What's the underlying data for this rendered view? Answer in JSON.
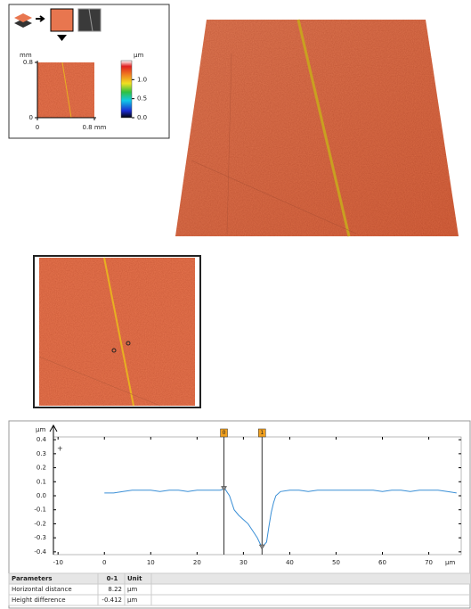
{
  "inset": {
    "axis_unit": "mm",
    "xlim": [
      0,
      0.8
    ],
    "xticks": [
      0,
      {
        "value": 0.8,
        "label": "0.8 mm"
      }
    ],
    "ylim": [
      0,
      0.8
    ],
    "yticks": [
      0,
      0.8
    ],
    "colorbar_unit": "µm",
    "colorbar_lim": [
      0,
      1.5
    ],
    "colorbar_ticks": [
      {
        "value": 0,
        "label": "0.0"
      },
      0.5,
      {
        "value": 1,
        "label": "1.0"
      }
    ]
  },
  "chart_data": {
    "type": "line",
    "x_unit": "µm",
    "y_unit": "µm",
    "x": [
      0,
      2,
      4,
      6,
      8,
      10,
      12,
      14,
      16,
      18,
      20,
      22,
      24,
      25,
      26,
      27,
      28,
      29,
      30,
      31,
      32,
      33,
      34,
      35,
      35.5,
      36,
      36.5,
      37,
      38,
      40,
      42,
      44,
      46,
      48,
      50,
      52,
      54,
      56,
      58,
      60,
      62,
      64,
      66,
      68,
      70,
      72,
      74,
      76
    ],
    "series": [
      {
        "color": "#3a8fd6",
        "values": [
          0.02,
          0.02,
          0.03,
          0.04,
          0.04,
          0.04,
          0.03,
          0.04,
          0.04,
          0.03,
          0.04,
          0.04,
          0.04,
          0.04,
          0.05,
          0.0,
          -0.1,
          -0.14,
          -0.17,
          -0.2,
          -0.25,
          -0.3,
          -0.37,
          -0.33,
          -0.22,
          -0.12,
          -0.05,
          0.0,
          0.03,
          0.04,
          0.04,
          0.03,
          0.04,
          0.04,
          0.04,
          0.04,
          0.04,
          0.04,
          0.04,
          0.03,
          0.04,
          0.04,
          0.03,
          0.04,
          0.04,
          0.04,
          0.03,
          0.02
        ]
      }
    ],
    "xlim": [
      -11,
      77
    ],
    "xticks": [
      -10,
      0,
      10,
      20,
      30,
      40,
      50,
      60,
      70
    ],
    "ylim": [
      -0.42,
      0.42
    ],
    "yticks": [
      -0.4,
      -0.3,
      -0.2,
      -0.1,
      {
        "value": 0,
        "label": "0.0"
      },
      0.1,
      0.2,
      0.3,
      0.4
    ],
    "cursors": [
      {
        "label": "0",
        "x": 25.8
      },
      {
        "label": "1",
        "x": 34.02
      }
    ]
  },
  "table": {
    "header": [
      "Parameters",
      "0-1",
      "Unit"
    ],
    "rows": [
      [
        "Horizontal distance",
        8.22,
        "µm"
      ],
      [
        "Height difference",
        -0.412,
        "µm"
      ]
    ]
  }
}
